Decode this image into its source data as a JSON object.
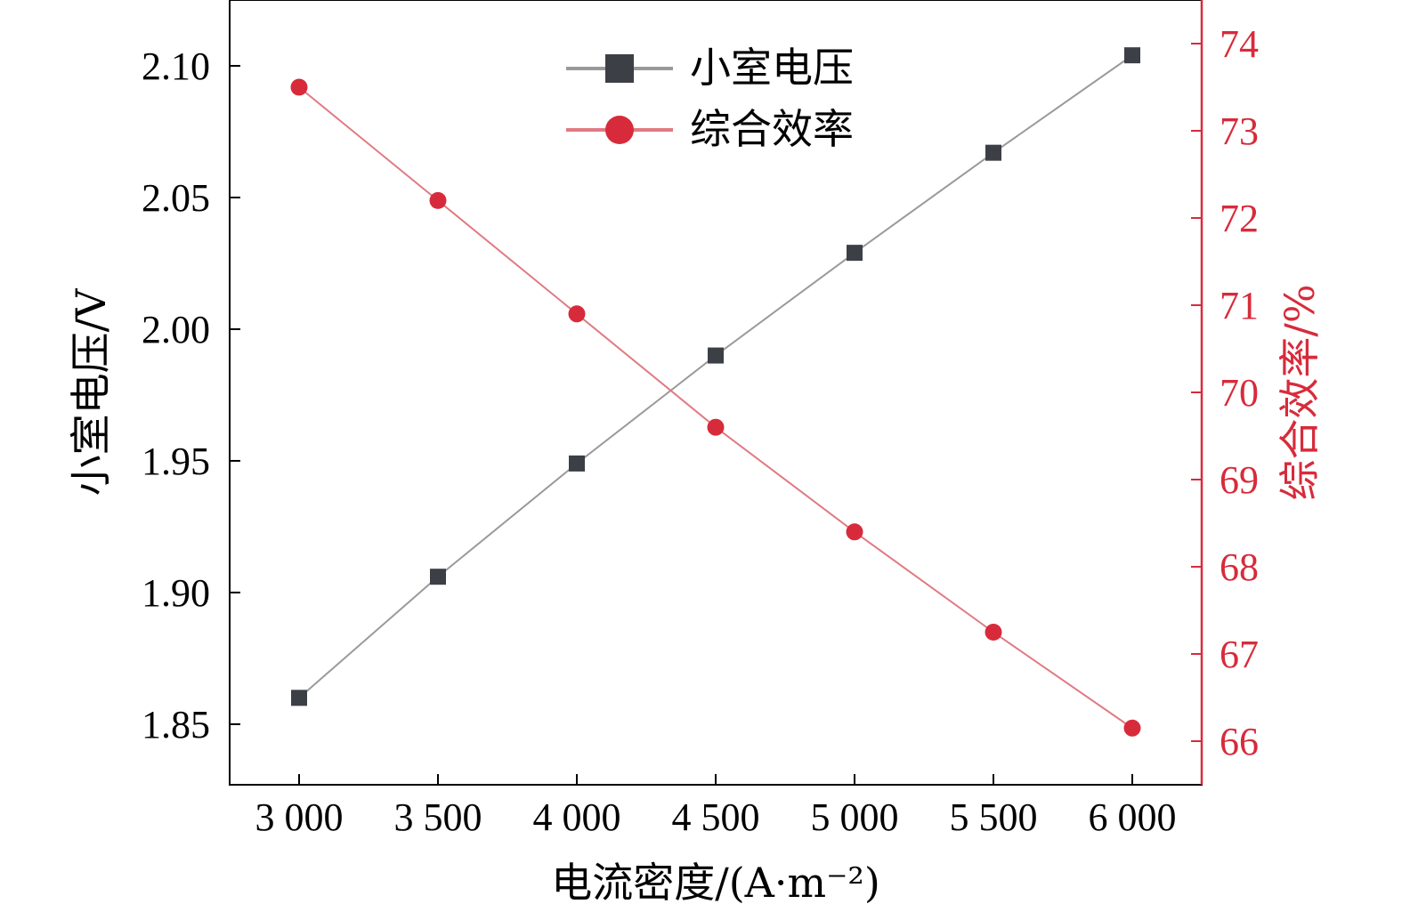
{
  "chart_data": {
    "type": "line",
    "x": [
      3000,
      3500,
      4000,
      4500,
      5000,
      5500,
      6000
    ],
    "x_tick_labels": [
      "3 000",
      "3 500",
      "4 000",
      "4 500",
      "5 000",
      "5 500",
      "6 000"
    ],
    "xlabel": "电流密度/(A·m⁻²)",
    "xlim": [
      2750,
      6250
    ],
    "y_left": {
      "label": "小室电压/V",
      "ticks": [
        1.85,
        1.9,
        1.95,
        2.0,
        2.05,
        2.1
      ],
      "tick_labels": [
        "1.85",
        "1.90",
        "1.95",
        "2.00",
        "2.05",
        "2.10"
      ],
      "ylim": [
        1.827,
        2.125
      ],
      "color": "#000000"
    },
    "y_right": {
      "label": "综合效率/%",
      "ticks": [
        66,
        67,
        68,
        69,
        70,
        71,
        72,
        73,
        74
      ],
      "tick_labels": [
        "66",
        "67",
        "68",
        "69",
        "70",
        "71",
        "72",
        "73",
        "74"
      ],
      "ylim": [
        65.5,
        74.5
      ],
      "color": "#d72b3b"
    },
    "series": [
      {
        "name": "小室电压",
        "axis": "left",
        "marker": "square",
        "color": "#3d3f46",
        "line_color": "#9a9a9a",
        "values": [
          1.86,
          1.906,
          1.949,
          1.99,
          2.029,
          2.067,
          2.104
        ]
      },
      {
        "name": "综合效率",
        "axis": "right",
        "marker": "circle",
        "color": "#d72b3b",
        "line_color": "#e07a82",
        "values": [
          73.5,
          72.2,
          70.9,
          69.6,
          68.4,
          67.25,
          66.15
        ]
      }
    ],
    "legend_position": "top-center",
    "grid": false
  }
}
